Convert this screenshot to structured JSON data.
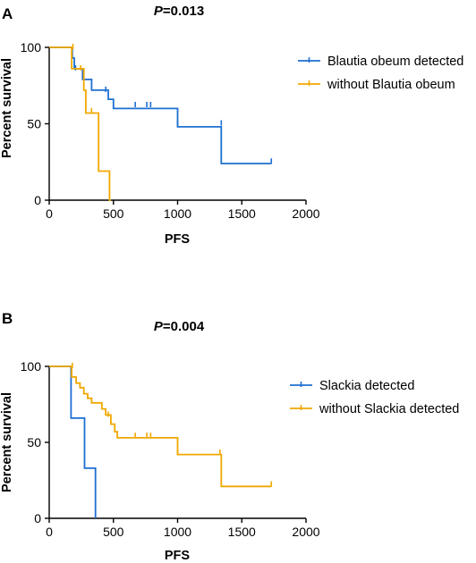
{
  "chart_data": [
    {
      "panel": "A",
      "title_prefix": "P",
      "title_value": "=0.013",
      "type": "line",
      "step": true,
      "xlabel": "PFS",
      "ylabel": "Percent survival",
      "xlim": [
        0,
        2000
      ],
      "ylim": [
        0,
        100
      ],
      "xticks": [
        0,
        500,
        1000,
        1500,
        2000
      ],
      "yticks": [
        0,
        50,
        100
      ],
      "legend_position": "right",
      "series": [
        {
          "name": "Blautia obeum detected",
          "color": "#1f6fd1",
          "points": [
            [
              0,
              100
            ],
            [
              180,
              100
            ],
            [
              180,
              93
            ],
            [
              195,
              93
            ],
            [
              195,
              86
            ],
            [
              260,
              86
            ],
            [
              260,
              79
            ],
            [
              330,
              79
            ],
            [
              330,
              72
            ],
            [
              460,
              72
            ],
            [
              460,
              66
            ],
            [
              500,
              66
            ],
            [
              500,
              60
            ],
            [
              1000,
              60
            ],
            [
              1000,
              48
            ],
            [
              1340,
              48
            ],
            [
              1340,
              24
            ],
            [
              1730,
              24
            ]
          ],
          "censor": [
            [
              205,
              86
            ],
            [
              440,
              72
            ],
            [
              670,
              62
            ],
            [
              760,
              62
            ],
            [
              790,
              62
            ],
            [
              1000,
              50
            ],
            [
              1340,
              50
            ],
            [
              1730,
              25
            ]
          ]
        },
        {
          "name": "without Blautia obeum",
          "color": "#f0a800",
          "points": [
            [
              0,
              100
            ],
            [
              175,
              100
            ],
            [
              175,
              86
            ],
            [
              270,
              86
            ],
            [
              270,
              72
            ],
            [
              285,
              72
            ],
            [
              285,
              57
            ],
            [
              385,
              57
            ],
            [
              385,
              19
            ],
            [
              470,
              19
            ],
            [
              470,
              0
            ],
            [
              480,
              0
            ]
          ],
          "censor": [
            [
              185,
              100
            ],
            [
              245,
              86
            ],
            [
              330,
              58
            ]
          ]
        }
      ]
    },
    {
      "panel": "B",
      "title_prefix": "P",
      "title_value": "=0.004",
      "type": "line",
      "step": true,
      "xlabel": "PFS",
      "ylabel": "Percent survival",
      "xlim": [
        0,
        2000
      ],
      "ylim": [
        0,
        100
      ],
      "xticks": [
        0,
        500,
        1000,
        1500,
        2000
      ],
      "yticks": [
        0,
        50,
        100
      ],
      "legend_position": "right",
      "series": [
        {
          "name": "Slackia detected",
          "color": "#1f6fd1",
          "points": [
            [
              0,
              100
            ],
            [
              170,
              100
            ],
            [
              170,
              66
            ],
            [
              275,
              66
            ],
            [
              275,
              33
            ],
            [
              360,
              33
            ],
            [
              360,
              0
            ]
          ],
          "censor": []
        },
        {
          "name": "without Slackia detected",
          "color": "#f0a800",
          "points": [
            [
              0,
              100
            ],
            [
              175,
              100
            ],
            [
              175,
              93
            ],
            [
              210,
              93
            ],
            [
              210,
              89
            ],
            [
              240,
              89
            ],
            [
              240,
              86
            ],
            [
              270,
              86
            ],
            [
              270,
              82
            ],
            [
              300,
              82
            ],
            [
              300,
              79
            ],
            [
              330,
              79
            ],
            [
              330,
              76
            ],
            [
              410,
              76
            ],
            [
              410,
              72
            ],
            [
              440,
              72
            ],
            [
              440,
              68
            ],
            [
              480,
              68
            ],
            [
              480,
              62
            ],
            [
              510,
              62
            ],
            [
              510,
              57
            ],
            [
              530,
              57
            ],
            [
              530,
              53
            ],
            [
              1000,
              53
            ],
            [
              1000,
              42
            ],
            [
              1340,
              42
            ],
            [
              1340,
              21
            ],
            [
              1730,
              21
            ]
          ],
          "censor": [
            [
              180,
              100
            ],
            [
              460,
              68
            ],
            [
              670,
              54
            ],
            [
              760,
              54
            ],
            [
              790,
              54
            ],
            [
              1000,
              43
            ],
            [
              1330,
              43
            ],
            [
              1730,
              22
            ]
          ]
        }
      ]
    }
  ]
}
